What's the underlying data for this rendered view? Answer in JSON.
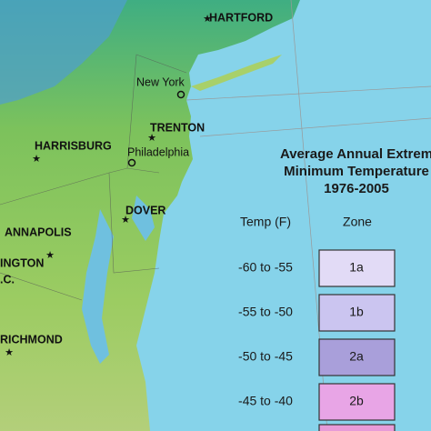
{
  "map": {
    "cities": [
      {
        "label": "HARTFORD"
      },
      {
        "label": "New York"
      },
      {
        "label": "TRENTON"
      },
      {
        "label": "HARRISBURG"
      },
      {
        "label": "Philadelphia"
      },
      {
        "label": "DOVER"
      },
      {
        "label": "ANNAPOLIS"
      },
      {
        "label": "INGTON"
      },
      {
        "label": ".C."
      },
      {
        "label": "RICHMOND"
      }
    ]
  },
  "legend": {
    "title": [
      "Average Annual Extrem",
      "Minimum Temperature",
      "1976-2005"
    ],
    "headers": [
      "Temp (F)",
      "Zone"
    ],
    "rows": [
      [
        "-60 to -55",
        "1a"
      ],
      [
        "-55 to -50",
        "1b"
      ],
      [
        "-50 to -45",
        "2a"
      ],
      [
        "-45 to -40",
        "2b"
      ]
    ]
  }
}
